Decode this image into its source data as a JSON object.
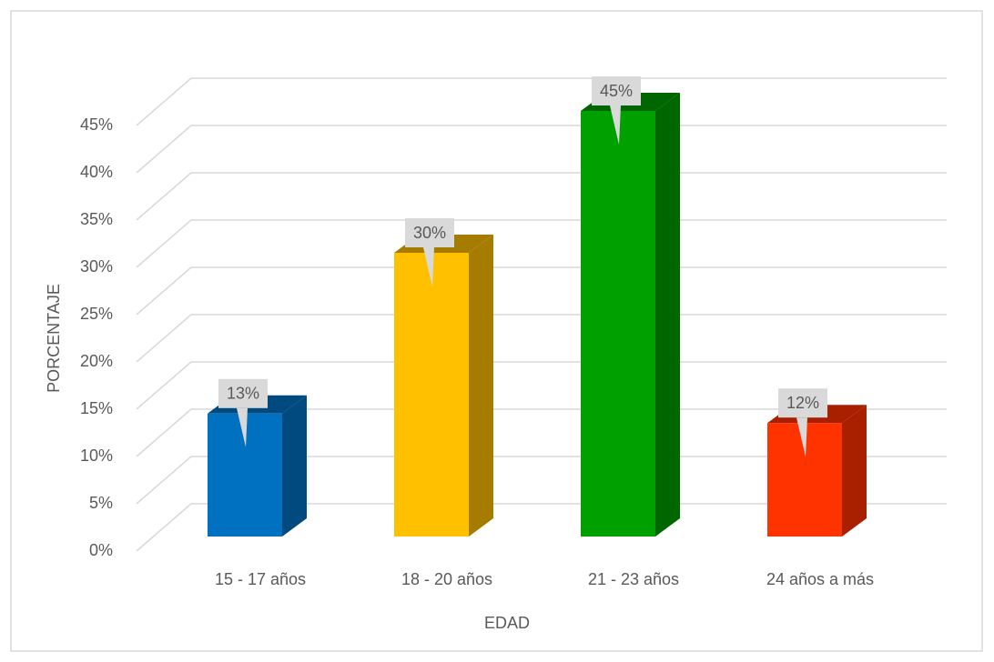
{
  "chart_data": {
    "type": "bar3d",
    "categories": [
      "15 - 17 años",
      "18 - 20 años",
      "21 - 23 años",
      "24 años a más"
    ],
    "values": [
      13,
      30,
      45,
      12
    ],
    "value_labels": [
      "13%",
      "30%",
      "45%",
      "12%"
    ],
    "colors": [
      "#0070c0",
      "#ffc000",
      "#00a000",
      "#ff3300"
    ],
    "side_colors": [
      "#004a80",
      "#a67c00",
      "#006600",
      "#a82000"
    ],
    "xlabel": "EDAD",
    "ylabel": "PORCENTAJE",
    "ylim": [
      0,
      45
    ],
    "yticks": [
      {
        "value": 0,
        "label": "0%"
      },
      {
        "value": 5,
        "label": "5%"
      },
      {
        "value": 10,
        "label": "10%"
      },
      {
        "value": 15,
        "label": "15%"
      },
      {
        "value": 20,
        "label": "20%"
      },
      {
        "value": 25,
        "label": "25%"
      },
      {
        "value": 30,
        "label": "30%"
      },
      {
        "value": 35,
        "label": "35%"
      },
      {
        "value": 40,
        "label": "40%"
      },
      {
        "value": 45,
        "label": "45%"
      }
    ],
    "grid": true
  }
}
